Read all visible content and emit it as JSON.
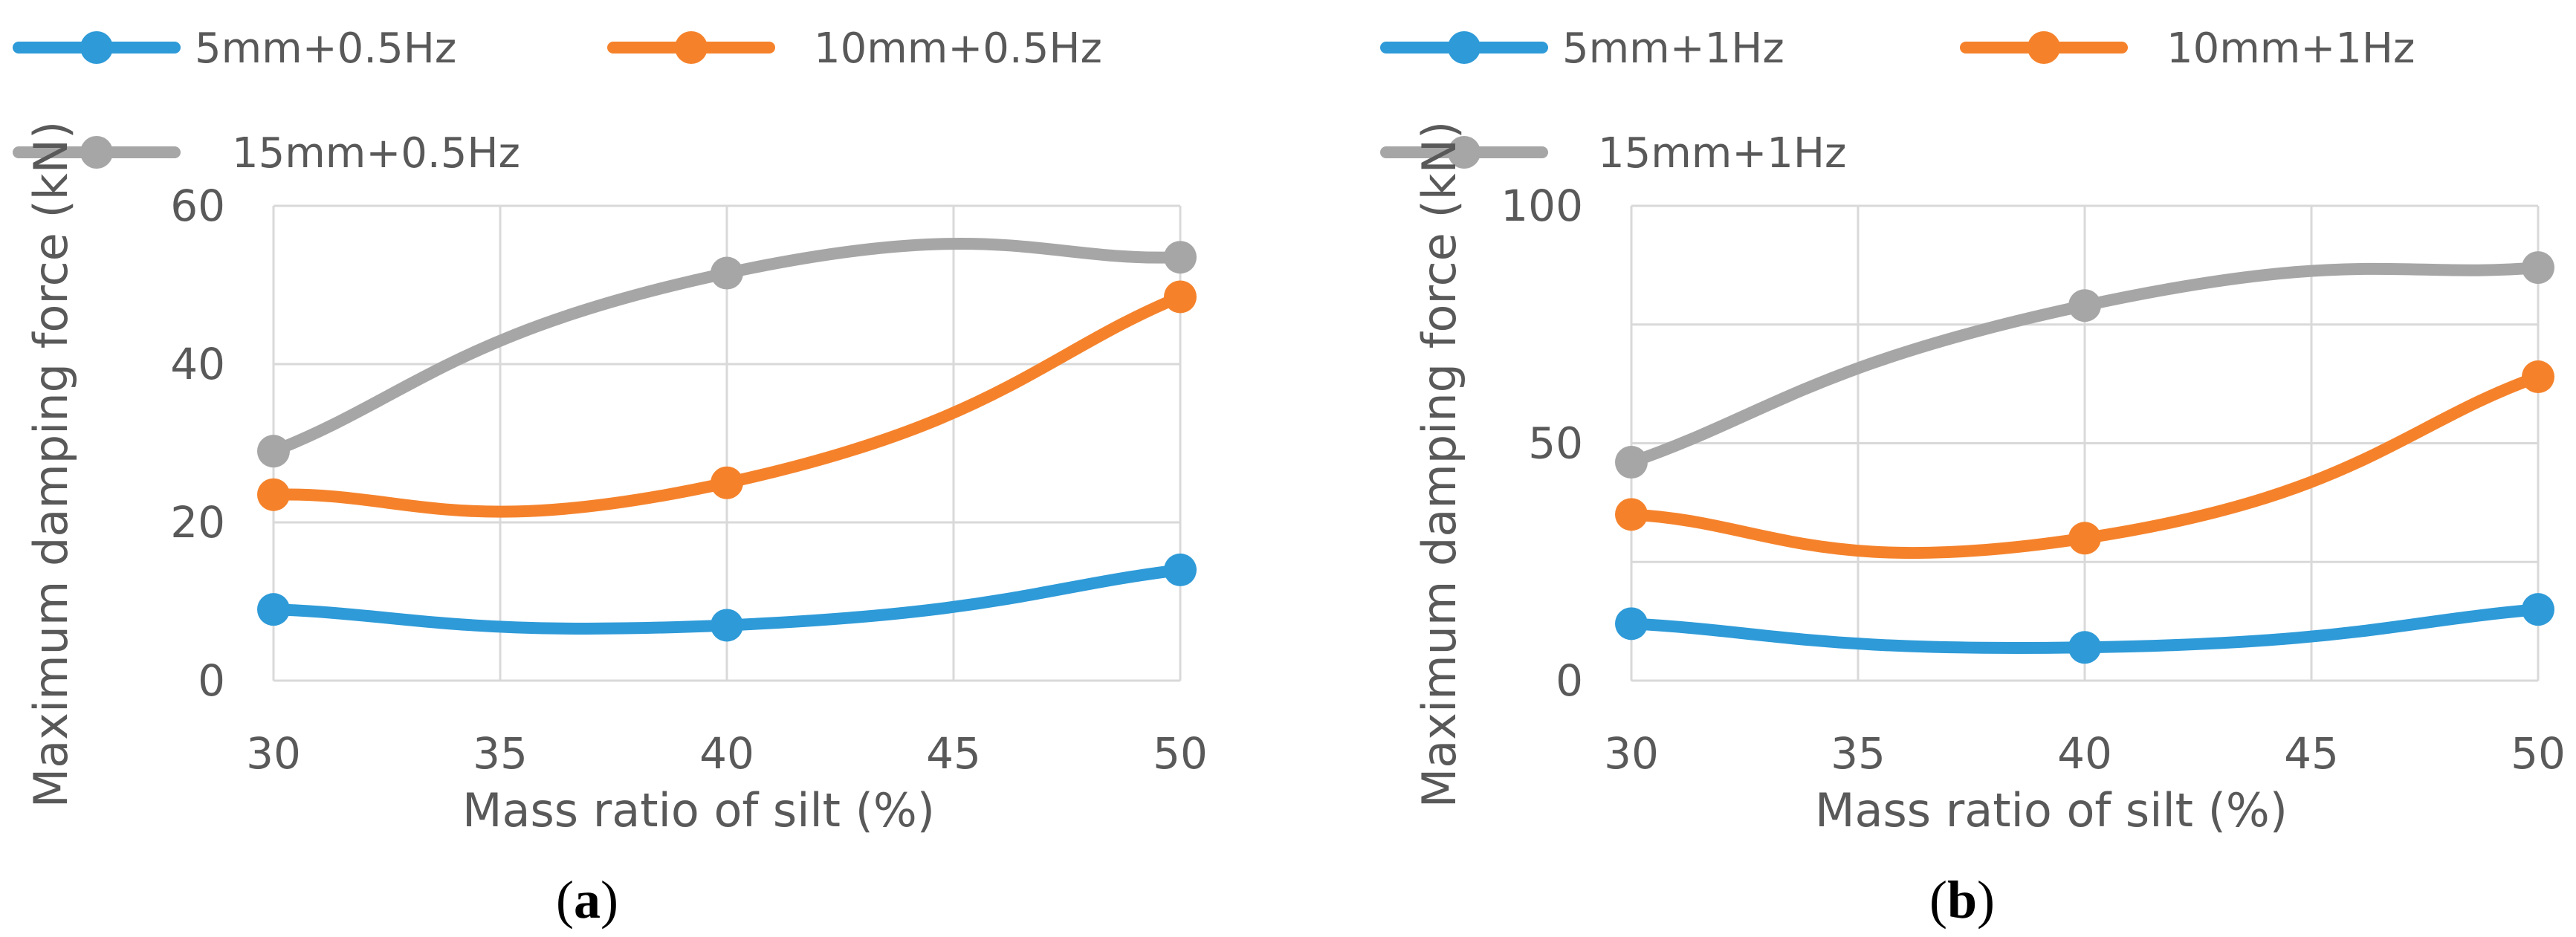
{
  "chart_data": [
    {
      "type": "line",
      "title": "",
      "panel_label": "a",
      "xlabel": "Mass ratio of silt (%)",
      "ylabel": "Maximum damping force (kN)",
      "xlim": [
        30,
        50
      ],
      "ylim": [
        0,
        60
      ],
      "xticks": [
        30,
        35,
        40,
        45,
        50
      ],
      "yticks": [
        0,
        20,
        40,
        60
      ],
      "grid": true,
      "smooth": true,
      "legend_position": "top",
      "series": [
        {
          "name": "5mm+0.5Hz",
          "color": "#2E9AD8",
          "x": [
            30,
            40,
            50
          ],
          "values": [
            9,
            7,
            14
          ]
        },
        {
          "name": "10mm+0.5Hz",
          "color": "#F5822B",
          "x": [
            30,
            40,
            50
          ],
          "values": [
            23.5,
            25,
            48.5
          ]
        },
        {
          "name": "15mm+0.5Hz",
          "color": "#A6A6A6",
          "x": [
            30,
            40,
            50
          ],
          "values": [
            29,
            51.5,
            53.5
          ]
        }
      ]
    },
    {
      "type": "line",
      "title": "",
      "panel_label": "b",
      "xlabel": "Mass ratio of silt (%)",
      "ylabel": "Maximum damping force (kN)",
      "xlim": [
        30,
        50
      ],
      "ylim": [
        0,
        100
      ],
      "xticks": [
        30,
        35,
        40,
        45,
        50
      ],
      "yticks": [
        0,
        50,
        100
      ],
      "yticks_labeled": [
        0,
        50,
        100
      ],
      "grid_step": 25,
      "grid": true,
      "smooth": true,
      "legend_position": "top",
      "series": [
        {
          "name": "5mm+1Hz",
          "color": "#2E9AD8",
          "x": [
            30,
            40,
            50
          ],
          "values": [
            12,
            7,
            15
          ]
        },
        {
          "name": "10mm+1Hz",
          "color": "#F5822B",
          "x": [
            30,
            40,
            50
          ],
          "values": [
            35,
            30,
            64
          ]
        },
        {
          "name": "15mm+1Hz",
          "color": "#A6A6A6",
          "x": [
            30,
            40,
            50
          ],
          "values": [
            46,
            79,
            87
          ]
        }
      ]
    }
  ]
}
